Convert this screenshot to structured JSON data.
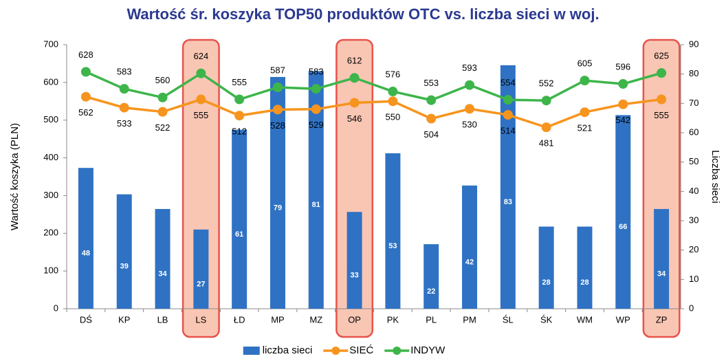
{
  "chart_data": {
    "type": "combo",
    "title": "Wartość śr. koszyka TOP50 produktów OTC vs. liczba sieci w woj.",
    "y_label": "Wartość koszyka (PLN)",
    "y2_label": "Liczba sieci",
    "categories": [
      "DŚ",
      "KP",
      "LB",
      "LS",
      "ŁD",
      "MP",
      "MZ",
      "OP",
      "PK",
      "PL",
      "PM",
      "ŚL",
      "ŚK",
      "WM",
      "WP",
      "ZP"
    ],
    "highlight_categories": [
      "LS",
      "OP",
      "ZP"
    ],
    "series": [
      {
        "name": "liczba sieci",
        "type": "bar",
        "axis": "y2",
        "color": "#2f72c4",
        "values": [
          48,
          39,
          34,
          27,
          61,
          79,
          81,
          33,
          53,
          22,
          42,
          83,
          28,
          28,
          66,
          34
        ]
      },
      {
        "name": "SIEĆ",
        "type": "line",
        "axis": "y",
        "color": "#f7941d",
        "label_position": "below",
        "values": [
          562,
          533,
          522,
          555,
          512,
          528,
          529,
          546,
          550,
          504,
          530,
          514,
          481,
          521,
          542,
          555
        ]
      },
      {
        "name": "INDYW",
        "type": "line",
        "axis": "y",
        "color": "#3db54a",
        "label_position": "above",
        "values": [
          628,
          583,
          560,
          624,
          555,
          587,
          583,
          612,
          576,
          553,
          593,
          554,
          552,
          605,
          596,
          625
        ]
      }
    ],
    "ylim": [
      0,
      700
    ],
    "yticks": [
      0,
      100,
      200,
      300,
      400,
      500,
      600,
      700
    ],
    "y2lim": [
      0,
      90
    ],
    "y2ticks": [
      0,
      10,
      20,
      30,
      40,
      50,
      60,
      70,
      80,
      90
    ],
    "grid": false,
    "legend": "bottom"
  }
}
